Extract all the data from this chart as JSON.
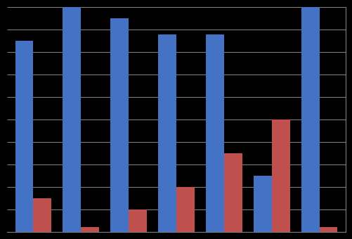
{
  "blue_values": [
    85,
    100,
    95,
    88,
    88,
    25,
    100
  ],
  "red_values": [
    15,
    2,
    10,
    20,
    35,
    50,
    2
  ],
  "bar_color_blue": "#4472C4",
  "bar_color_red": "#C0504D",
  "background_color": "#000000",
  "plot_background": "#000000",
  "grid_color": "#7F7F7F",
  "ylim": [
    0,
    100
  ],
  "bar_width": 0.38
}
